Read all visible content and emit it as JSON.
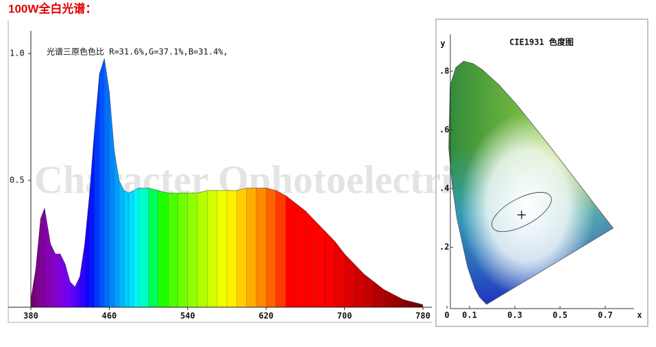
{
  "header": {
    "title": "100W全白光谱："
  },
  "chart_data": [
    {
      "type": "area",
      "annotation": "光谱三原色色比  R=31.6%,G=37.1%,B=31.4%,",
      "watermark": "Character Ophotoelectric",
      "x": [
        380,
        385,
        390,
        394,
        400,
        405,
        410,
        415,
        420,
        425,
        430,
        435,
        440,
        445,
        450,
        455,
        460,
        465,
        470,
        475,
        480,
        485,
        490,
        500,
        510,
        520,
        530,
        540,
        550,
        560,
        570,
        580,
        590,
        600,
        610,
        620,
        630,
        640,
        650,
        660,
        670,
        680,
        690,
        700,
        710,
        720,
        730,
        740,
        750,
        760,
        770,
        780
      ],
      "values": [
        0.03,
        0.15,
        0.35,
        0.39,
        0.25,
        0.21,
        0.21,
        0.17,
        0.1,
        0.08,
        0.12,
        0.25,
        0.45,
        0.7,
        0.92,
        0.98,
        0.85,
        0.62,
        0.5,
        0.46,
        0.45,
        0.46,
        0.47,
        0.47,
        0.46,
        0.45,
        0.45,
        0.45,
        0.45,
        0.46,
        0.46,
        0.46,
        0.46,
        0.47,
        0.47,
        0.47,
        0.46,
        0.44,
        0.41,
        0.38,
        0.34,
        0.3,
        0.26,
        0.21,
        0.17,
        0.13,
        0.1,
        0.07,
        0.05,
        0.03,
        0.02,
        0.01
      ],
      "xlim": [
        380,
        780
      ],
      "ylim": [
        0,
        1
      ],
      "xticks": [
        380,
        460,
        540,
        620,
        700,
        780
      ],
      "yticks": [
        {
          "value": 1,
          "label": "1.0"
        },
        0.5
      ]
    },
    {
      "type": "scatter",
      "title": "CIE1931 色度图",
      "x_label": "x",
      "y_label": "y",
      "x": [
        0.33
      ],
      "values": [
        0.31
      ],
      "xlim": [
        0,
        0.85
      ],
      "ylim": [
        0,
        0.9
      ],
      "xticks": [
        0,
        0.1,
        0.3,
        0.5,
        0.7
      ],
      "yticks": [
        {
          "value": 0.2,
          "label": ".2"
        },
        {
          "value": 0.4,
          "label": ".4"
        },
        {
          "value": 0.6,
          "label": ".6"
        },
        {
          "value": 0.8,
          "label": ".8"
        }
      ]
    }
  ]
}
